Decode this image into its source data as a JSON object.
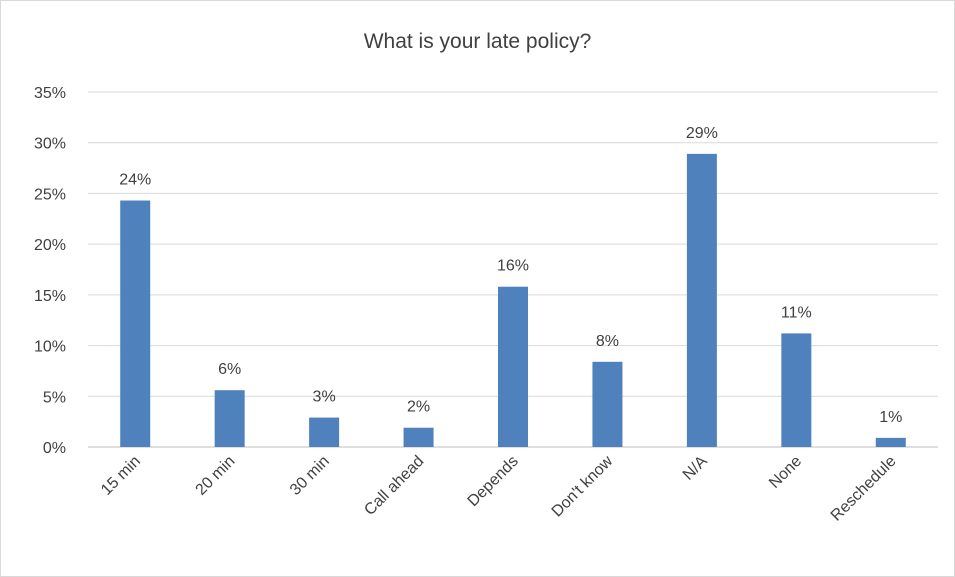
{
  "chart_data": {
    "type": "bar",
    "title": "What is your late policy?",
    "categories": [
      "15 min",
      "20 min",
      "30 min",
      "Call ahead",
      "Depends",
      "Don't know",
      "N/A",
      "None",
      "Reschedule"
    ],
    "values": [
      24.3,
      5.6,
      2.9,
      1.9,
      15.8,
      8.4,
      28.9,
      11.2,
      0.9
    ],
    "data_labels": [
      "24%",
      "6%",
      "3%",
      "2%",
      "16%",
      "8%",
      "29%",
      "11%",
      "1%"
    ],
    "y_ticks": [
      0,
      5,
      10,
      15,
      20,
      25,
      30,
      35
    ],
    "y_tick_labels": [
      "0%",
      "5%",
      "10%",
      "15%",
      "20%",
      "25%",
      "30%",
      "35%"
    ],
    "ylim": [
      0,
      35
    ],
    "grid": true,
    "legend": "none",
    "bar_color": "#4f81bd",
    "grid_color": "#d9d9d9"
  }
}
